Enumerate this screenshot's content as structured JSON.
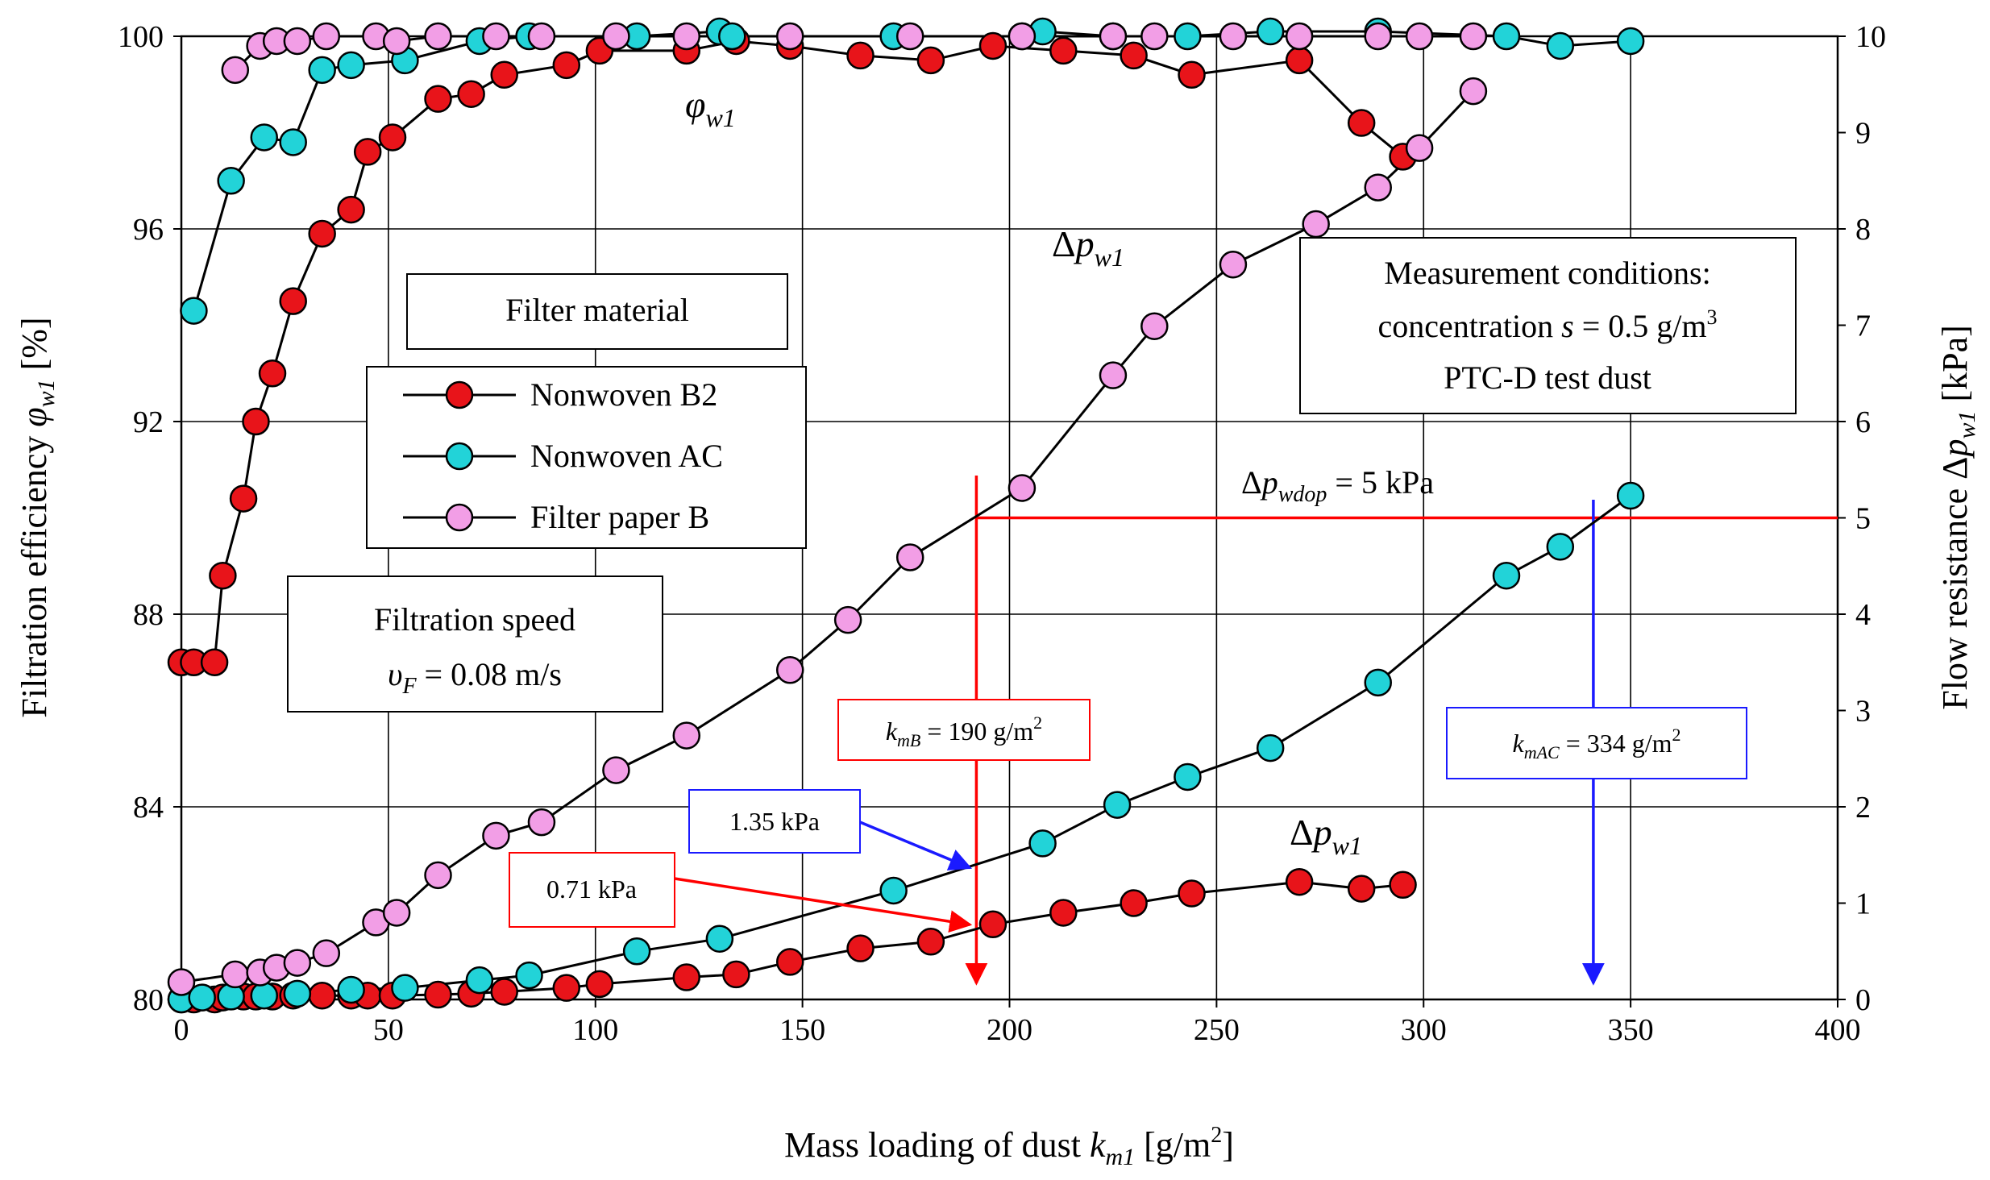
{
  "chart_data": {
    "type": "scatter",
    "x_axis": {
      "label_main": "Mass loading of dust ",
      "label_var": "k",
      "label_sub": "m1",
      "label_unit": " [g/m",
      "label_sup": "2",
      "label_close": "]",
      "range": [
        0,
        400
      ],
      "ticks": [
        0,
        50,
        100,
        150,
        200,
        250,
        300,
        350,
        400
      ]
    },
    "y_left": {
      "label_main": "Filtration efficiency ",
      "label_var": "φ",
      "label_sub": "w1",
      "label_unit": " [%]",
      "range": [
        80,
        100
      ],
      "ticks": [
        80,
        84,
        88,
        92,
        96,
        100
      ]
    },
    "y_right": {
      "label_main": "Flow resistance Δ",
      "label_var": "p",
      "label_sub": "w1",
      "label_unit": " [kPa]",
      "range": [
        0,
        10
      ],
      "ticks": [
        0,
        1,
        2,
        3,
        4,
        5,
        6,
        7,
        8,
        9,
        10
      ]
    },
    "series": [
      {
        "name": "Nonwoven B2",
        "color": "#e8141a",
        "axis": "left",
        "quantity": "efficiency",
        "x": [
          0,
          3,
          8,
          10,
          15,
          18,
          22,
          27,
          34,
          41,
          45,
          51,
          62,
          70,
          78,
          93,
          101,
          122,
          134,
          147,
          164,
          181,
          196,
          213,
          230,
          244,
          270,
          285,
          295
        ],
        "y": [
          87.0,
          87.0,
          87.0,
          88.8,
          90.4,
          92.0,
          93.0,
          94.5,
          95.9,
          96.4,
          97.6,
          97.9,
          98.7,
          98.8,
          99.2,
          99.4,
          99.7,
          99.7,
          99.9,
          99.8,
          99.6,
          99.5,
          99.8,
          99.7,
          99.6,
          99.2,
          99.5,
          98.2,
          97.5
        ]
      },
      {
        "name": "Nonwoven AC",
        "color": "#22d3d8",
        "axis": "left",
        "quantity": "efficiency",
        "x": [
          3,
          12,
          20,
          27,
          34,
          41,
          54,
          72,
          84,
          110,
          130,
          133,
          172,
          203,
          208,
          225,
          243,
          263,
          289,
          320,
          333,
          350
        ],
        "y": [
          94.3,
          97.0,
          97.9,
          97.8,
          99.3,
          99.4,
          99.5,
          99.9,
          100.0,
          100.0,
          100.1,
          100.0,
          100.0,
          100.0,
          100.1,
          100.0,
          100.0,
          100.1,
          100.1,
          100.0,
          99.8,
          99.9
        ]
      },
      {
        "name": "Filter paper B",
        "color": "#f29ee6",
        "axis": "left",
        "quantity": "efficiency",
        "x": [
          13,
          19,
          23,
          28,
          35,
          47,
          52,
          62,
          76,
          87,
          105,
          122,
          147,
          176,
          203,
          225,
          235,
          254,
          270,
          289,
          299,
          312
        ],
        "y": [
          99.3,
          99.8,
          99.9,
          99.9,
          100.0,
          100.0,
          99.9,
          100.0,
          100.0,
          100.0,
          100.0,
          100.0,
          100.0,
          100.0,
          100.0,
          100.0,
          100.0,
          100.0,
          100.0,
          100.0,
          100.0,
          100.0
        ]
      },
      {
        "name": "Nonwoven B2",
        "color": "#e8141a",
        "axis": "right",
        "quantity": "resistance",
        "x": [
          0,
          3,
          8,
          10,
          15,
          18,
          22,
          27,
          34,
          41,
          45,
          51,
          62,
          70,
          78,
          93,
          101,
          122,
          134,
          147,
          164,
          181,
          196,
          213,
          230,
          244,
          270,
          285,
          295
        ],
        "y": [
          0.0,
          0.0,
          0.0,
          0.02,
          0.03,
          0.03,
          0.03,
          0.04,
          0.04,
          0.04,
          0.04,
          0.04,
          0.05,
          0.06,
          0.08,
          0.12,
          0.16,
          0.23,
          0.26,
          0.39,
          0.53,
          0.6,
          0.78,
          0.9,
          1.0,
          1.1,
          1.22,
          1.15,
          1.19
        ]
      },
      {
        "name": "Nonwoven AC",
        "color": "#22d3d8",
        "axis": "right",
        "quantity": "resistance",
        "x": [
          0,
          5,
          12,
          20,
          28,
          41,
          54,
          72,
          84,
          110,
          130,
          172,
          208,
          226,
          243,
          263,
          289,
          320,
          333,
          350
        ],
        "y": [
          0.0,
          0.02,
          0.03,
          0.04,
          0.06,
          0.1,
          0.12,
          0.2,
          0.25,
          0.5,
          0.63,
          1.13,
          1.62,
          2.02,
          2.31,
          2.61,
          3.29,
          4.4,
          4.7,
          5.23
        ]
      },
      {
        "name": "Filter paper B",
        "color": "#f29ee6",
        "axis": "right",
        "quantity": "resistance",
        "x": [
          0,
          13,
          19,
          23,
          28,
          35,
          47,
          52,
          62,
          76,
          87,
          105,
          122,
          147,
          161,
          176,
          203,
          225,
          235,
          254,
          274,
          289,
          299,
          312
        ],
        "y": [
          0.18,
          0.26,
          0.28,
          0.33,
          0.38,
          0.48,
          0.8,
          0.9,
          1.29,
          1.7,
          1.84,
          2.38,
          2.74,
          3.42,
          3.94,
          4.59,
          5.31,
          6.48,
          6.99,
          7.63,
          8.05,
          8.43,
          8.84,
          9.43
        ]
      }
    ],
    "legend": {
      "title": "Filter material",
      "entries": [
        "Nonwoven B2",
        "Nonwoven AC",
        "Filter paper B"
      ],
      "position": "upper-left"
    },
    "annotations": {
      "phi_label": {
        "var": "φ",
        "sub": "w1"
      },
      "dp_label_paper": {
        "prefix": "Δ",
        "var": "p",
        "sub": "w1"
      },
      "dp_label_b2": {
        "prefix": "Δ",
        "var": "p",
        "sub": "w1"
      },
      "filtration_speed": {
        "line1": "Filtration speed",
        "var": "υ",
        "sub": "F",
        "value": " = 0.08 m/s"
      },
      "measurement": {
        "line1": "Measurement conditions:",
        "line2_pre": "concentration ",
        "line2_var": "s",
        "line2_val": " = 0.5 g/m",
        "line2_sup": "3",
        "line3": "PTC-D test dust"
      },
      "dp_limit": {
        "prefix": "Δ",
        "var": "p",
        "sub": "wdop",
        "value": " = 5 kPa",
        "kpa": 5
      },
      "kmB": {
        "var": "k",
        "sub": "mB",
        "value": " = 190 g/m",
        "sup": "2",
        "x": 192
      },
      "kmAC": {
        "var": "k",
        "sub": "mAC",
        "value": " = 334 g/m",
        "sup": "2",
        "x": 341
      },
      "dp_ac_at_kmB": {
        "text": "1.35 kPa",
        "kpa": 1.35
      },
      "dp_b2_at_kmB": {
        "text": "0.71 kPa",
        "kpa": 0.71
      }
    },
    "grid": true
  }
}
